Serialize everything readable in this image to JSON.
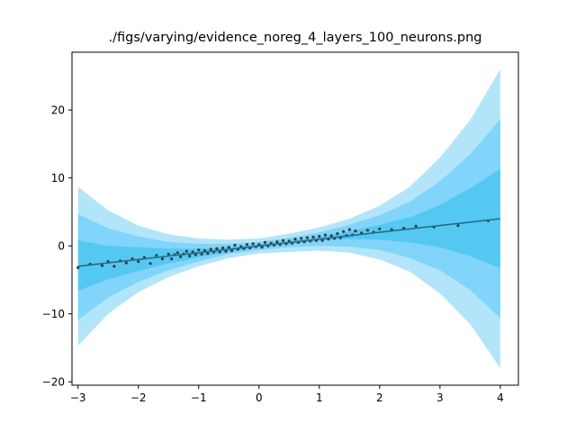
{
  "chart_data": {
    "type": "line",
    "title": "./figs/varying/evidence_noreg_4_layers_100_neurons.png",
    "xlabel": "",
    "ylabel": "",
    "xlim": [
      -3.1,
      4.3
    ],
    "ylim": [
      -20.5,
      28.5
    ],
    "xticks": [
      {
        "value": -3,
        "label": "−3"
      },
      {
        "value": -2,
        "label": "−2"
      },
      {
        "value": -1,
        "label": "−1"
      },
      {
        "value": 0,
        "label": "0"
      },
      {
        "value": 1,
        "label": "1"
      },
      {
        "value": 2,
        "label": "2"
      },
      {
        "value": 3,
        "label": "3"
      },
      {
        "value": 4,
        "label": "4"
      }
    ],
    "yticks": [
      {
        "value": -20,
        "label": "−20"
      },
      {
        "value": -10,
        "label": "−10"
      },
      {
        "value": 0,
        "label": "0"
      },
      {
        "value": 10,
        "label": "10"
      },
      {
        "value": 20,
        "label": "20"
      }
    ],
    "grid": false,
    "colors": {
      "band_outer": "#b3e5fa",
      "band_middle": "#81d4fa",
      "band_inner": "#55c8f2",
      "mean_line": "#1f6f8b",
      "points": "#3a3a3a"
    },
    "x": [
      -3.0,
      -2.5,
      -2.0,
      -1.5,
      -1.0,
      -0.5,
      0.0,
      0.5,
      1.0,
      1.5,
      2.0,
      2.5,
      3.0,
      3.5,
      4.0
    ],
    "mean": [
      -3.0,
      -2.5,
      -2.0,
      -1.5,
      -1.0,
      -0.5,
      0.0,
      0.5,
      1.0,
      1.5,
      2.0,
      2.5,
      3.0,
      3.5,
      4.0
    ],
    "bands": [
      {
        "level": "outer",
        "upper": [
          8.7,
          5.2,
          3.0,
          1.7,
          1.1,
          0.9,
          1.1,
          1.8,
          2.7,
          4.0,
          5.9,
          8.7,
          13.0,
          18.5,
          26.0
        ],
        "lower": [
          -14.7,
          -10.0,
          -6.8,
          -4.6,
          -3.0,
          -1.8,
          -1.1,
          -0.9,
          -0.7,
          -1.0,
          -2.0,
          -3.8,
          -7.0,
          -11.5,
          -18.0
        ]
      },
      {
        "level": "middle",
        "upper": [
          4.7,
          2.6,
          1.4,
          0.6,
          0.3,
          0.3,
          0.6,
          1.2,
          2.0,
          3.1,
          4.5,
          6.5,
          9.5,
          13.5,
          18.6
        ],
        "lower": [
          -10.9,
          -7.6,
          -5.3,
          -3.6,
          -2.3,
          -1.2,
          -0.6,
          -0.2,
          0.0,
          -0.1,
          -0.6,
          -1.8,
          -3.6,
          -6.5,
          -10.6
        ]
      },
      {
        "level": "inner",
        "upper": [
          0.8,
          0.0,
          -0.2,
          -0.4,
          -0.4,
          -0.2,
          0.2,
          0.7,
          1.3,
          2.1,
          3.1,
          4.2,
          6.0,
          8.5,
          11.3
        ],
        "lower": [
          -6.6,
          -4.9,
          -3.7,
          -2.6,
          -1.7,
          -0.9,
          -0.2,
          0.3,
          0.8,
          1.0,
          0.9,
          0.5,
          -0.2,
          -1.5,
          -3.3
        ]
      }
    ],
    "points": [
      [
        -3.0,
        -3.2
      ],
      [
        -2.8,
        -2.7
      ],
      [
        -2.6,
        -2.9
      ],
      [
        -2.5,
        -2.3
      ],
      [
        -2.4,
        -3.0
      ],
      [
        -2.3,
        -2.2
      ],
      [
        -2.2,
        -2.5
      ],
      [
        -2.1,
        -1.9
      ],
      [
        -2.0,
        -2.3
      ],
      [
        -1.9,
        -1.7
      ],
      [
        -1.8,
        -2.6
      ],
      [
        -1.7,
        -1.4
      ],
      [
        -1.6,
        -1.9
      ],
      [
        -1.5,
        -1.2
      ],
      [
        -1.45,
        -1.9
      ],
      [
        -1.4,
        -1.3
      ],
      [
        -1.35,
        -1.0
      ],
      [
        -1.3,
        -1.6
      ],
      [
        -1.25,
        -1.2
      ],
      [
        -1.2,
        -0.8
      ],
      [
        -1.15,
        -1.5
      ],
      [
        -1.1,
        -0.9
      ],
      [
        -1.05,
        -1.3
      ],
      [
        -1.0,
        -0.6
      ],
      [
        -0.95,
        -1.2
      ],
      [
        -0.9,
        -0.7
      ],
      [
        -0.85,
        -1.1
      ],
      [
        -0.8,
        -0.5
      ],
      [
        -0.75,
        -0.9
      ],
      [
        -0.7,
        -0.4
      ],
      [
        -0.65,
        -0.9
      ],
      [
        -0.6,
        -0.3
      ],
      [
        -0.55,
        -0.8
      ],
      [
        -0.5,
        -0.2
      ],
      [
        -0.45,
        -0.7
      ],
      [
        -0.4,
        0.1
      ],
      [
        -0.35,
        -0.5
      ],
      [
        -0.3,
        -0.1
      ],
      [
        -0.25,
        -0.4
      ],
      [
        -0.2,
        0.2
      ],
      [
        -0.15,
        -0.3
      ],
      [
        -0.1,
        0.3
      ],
      [
        -0.05,
        -0.1
      ],
      [
        0.0,
        0.2
      ],
      [
        0.05,
        -0.2
      ],
      [
        0.1,
        0.5
      ],
      [
        0.15,
        0.0
      ],
      [
        0.2,
        0.4
      ],
      [
        0.25,
        0.1
      ],
      [
        0.3,
        0.6
      ],
      [
        0.35,
        0.2
      ],
      [
        0.4,
        0.8
      ],
      [
        0.45,
        0.3
      ],
      [
        0.5,
        0.7
      ],
      [
        0.55,
        0.4
      ],
      [
        0.6,
        1.0
      ],
      [
        0.65,
        0.5
      ],
      [
        0.7,
        1.1
      ],
      [
        0.75,
        0.6
      ],
      [
        0.8,
        1.2
      ],
      [
        0.85,
        0.7
      ],
      [
        0.9,
        1.3
      ],
      [
        0.95,
        0.8
      ],
      [
        1.0,
        1.4
      ],
      [
        1.05,
        0.8
      ],
      [
        1.1,
        1.6
      ],
      [
        1.15,
        1.0
      ],
      [
        1.2,
        1.5
      ],
      [
        1.25,
        1.1
      ],
      [
        1.3,
        1.8
      ],
      [
        1.35,
        1.2
      ],
      [
        1.4,
        2.1
      ],
      [
        1.45,
        1.5
      ],
      [
        1.5,
        2.4
      ],
      [
        1.55,
        1.6
      ],
      [
        1.6,
        2.2
      ],
      [
        1.7,
        1.9
      ],
      [
        1.8,
        2.3
      ],
      [
        1.9,
        2.0
      ],
      [
        2.0,
        2.5
      ],
      [
        2.2,
        2.4
      ],
      [
        2.4,
        2.6
      ],
      [
        2.6,
        2.9
      ],
      [
        2.9,
        2.8
      ],
      [
        3.3,
        3.0
      ],
      [
        3.8,
        3.7
      ]
    ]
  }
}
